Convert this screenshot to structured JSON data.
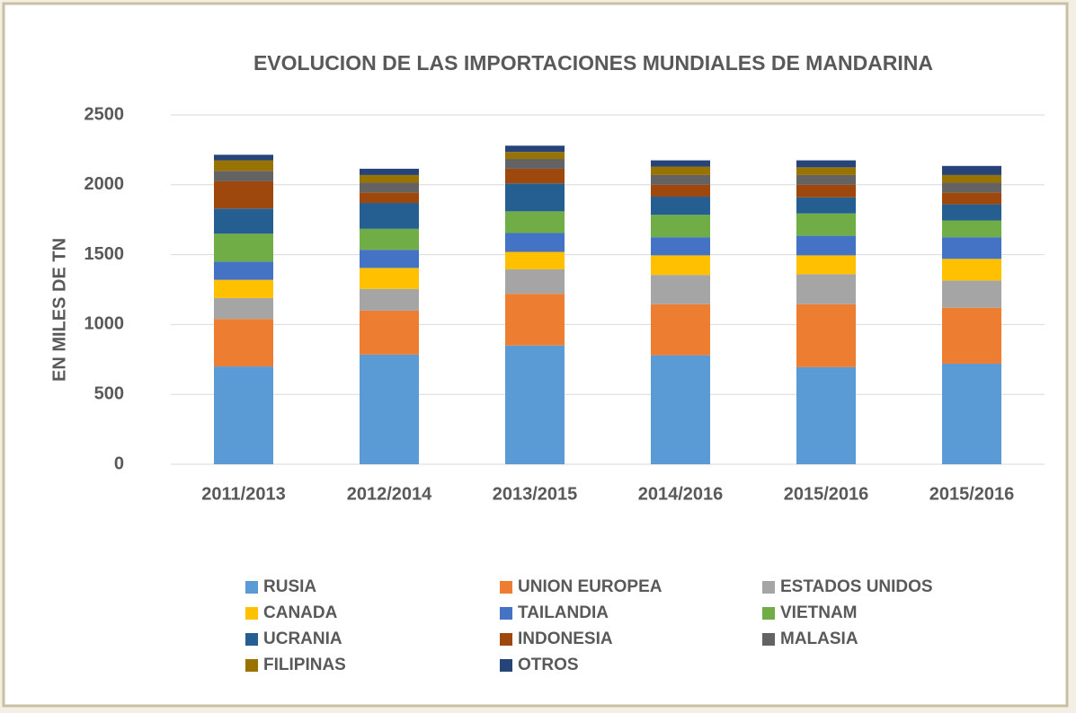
{
  "chart_data": {
    "type": "stacked_bar",
    "title": "EVOLUCION DE LAS IMPORTACIONES MUNDIALES DE MANDARINA",
    "y_label": "EN MILES DE TN",
    "categories": [
      "2011/2013",
      "2012/2014",
      "2013/2015",
      "2014/2016",
      "2015/2016",
      "2015/2016"
    ],
    "series": [
      {
        "name": "RUSIA",
        "color": "#5b9bd5",
        "values": [
          700,
          785,
          850,
          780,
          695,
          720
        ]
      },
      {
        "name": "UNION EUROPEA",
        "color": "#ed7d31",
        "values": [
          340,
          315,
          370,
          365,
          450,
          400
        ]
      },
      {
        "name": "ESTADOS UNIDOS",
        "color": "#a5a5a5",
        "values": [
          150,
          155,
          175,
          210,
          215,
          195
        ]
      },
      {
        "name": "CANADA",
        "color": "#ffc000",
        "values": [
          130,
          150,
          125,
          140,
          135,
          155
        ]
      },
      {
        "name": "TAILANDIA",
        "color": "#4472c4",
        "values": [
          130,
          130,
          135,
          130,
          140,
          155
        ]
      },
      {
        "name": "VIETNAM",
        "color": "#70ad47",
        "values": [
          200,
          150,
          155,
          160,
          160,
          120
        ]
      },
      {
        "name": "UCRANIA",
        "color": "#255e91",
        "values": [
          180,
          185,
          200,
          130,
          115,
          115
        ]
      },
      {
        "name": "INDONESIA",
        "color": "#9e480e",
        "values": [
          195,
          75,
          105,
          85,
          90,
          85
        ]
      },
      {
        "name": "MALASIA",
        "color": "#636363",
        "values": [
          75,
          70,
          70,
          70,
          70,
          70
        ]
      },
      {
        "name": "FILIPINAS",
        "color": "#997300",
        "values": [
          75,
          55,
          50,
          60,
          55,
          55
        ]
      },
      {
        "name": "OTROS",
        "color": "#264478",
        "values": [
          40,
          45,
          45,
          45,
          50,
          65
        ]
      }
    ],
    "ylim": [
      0,
      2500
    ],
    "yticks": [
      0,
      500,
      1000,
      1500,
      2000,
      2500
    ],
    "grid": true,
    "legend": "bottom"
  }
}
